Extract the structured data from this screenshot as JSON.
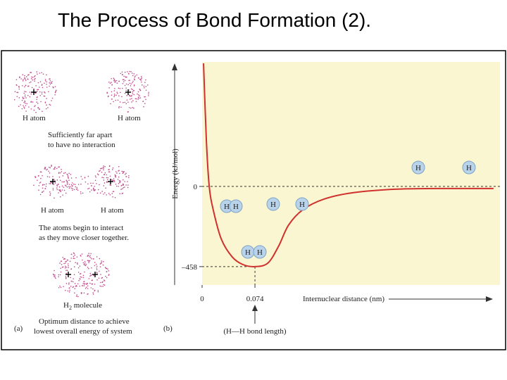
{
  "title": "The Process of Bond Formation (2).",
  "panel_a": {
    "label": "(a)",
    "atom_labels": [
      "H atom",
      "H atom",
      "H atom",
      "H atom"
    ],
    "note_1": [
      "Sufficiently far apart",
      "to have no interaction"
    ],
    "note_2": [
      "The atoms begin to interact",
      "as they move closer together."
    ],
    "molecule_label": {
      "main": "H",
      "sub": "2",
      "rest": " molecule"
    },
    "note_3": [
      "Optimum distance to achieve",
      "lowest overall energy of system"
    ]
  },
  "chart_data": {
    "type": "line",
    "panel_label": "(b)",
    "x_label": "Internuclear distance (nm)",
    "y_label": "Energy (kJ/mol)",
    "annotation": "(H—H bond length)",
    "atom_symbols": [
      "H",
      "H",
      "H",
      "H",
      "H",
      "H",
      "H",
      "H"
    ],
    "x": [
      0.002,
      0.006,
      0.01,
      0.016,
      0.027,
      0.042,
      0.057,
      0.074,
      0.092,
      0.107,
      0.121,
      0.141,
      0.171,
      0.211,
      0.27,
      0.329,
      0.408
    ],
    "series": [
      {
        "name": "Energy",
        "color": "#d0312d",
        "values": [
          703,
          261,
          0,
          -141,
          -302,
          -402,
          -446,
          -458,
          -438,
          -342,
          -221,
          -133,
          -72,
          -36,
          -16,
          -12,
          -12
        ]
      }
    ],
    "xlim": [
      0,
      0.417
    ],
    "ylim": [
      -563,
      711
    ],
    "xticks": [
      0,
      0.074
    ],
    "yticks": [
      0,
      {
        "value": -458,
        "label": "–458"
      }
    ]
  }
}
